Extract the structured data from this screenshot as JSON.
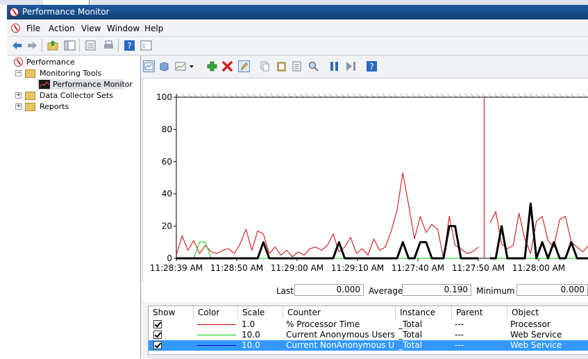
{
  "window": {
    "title": "Performance Monitor"
  },
  "menu": [
    "File",
    "Action",
    "View",
    "Window",
    "Help"
  ],
  "tree": {
    "root": "Performance",
    "monitoring_tools": "Monitoring Tools",
    "performance_monitor": "Performance Monitor",
    "data_collector_sets": "Data Collector Sets",
    "reports": "Reports"
  },
  "chart_data": {
    "type": "line",
    "ylim": [
      0,
      100
    ],
    "yticks": [
      "100",
      "80",
      "60",
      "40",
      "20",
      "0"
    ],
    "xticks": [
      "11:28:39 AM",
      "11:28:50 AM",
      "11:29:00 AM",
      "11:29:10 AM",
      "11:27:40 AM",
      "11:27:50 AM",
      "11:28:00 AM"
    ],
    "current_position_index": 52,
    "series": [
      {
        "color": "#cc0000",
        "values": [
          2,
          14,
          5,
          11,
          3,
          8,
          4,
          3,
          5,
          6,
          3,
          9,
          18,
          5,
          17,
          15,
          3,
          7,
          2,
          5,
          1,
          4,
          2,
          6,
          7,
          5,
          8,
          15,
          4,
          7,
          13,
          3,
          6,
          2,
          12,
          5,
          7,
          17,
          30,
          53,
          33,
          12,
          26,
          16,
          21,
          18,
          0,
          26,
          8,
          6,
          3,
          4,
          7,
          12,
          22,
          29,
          9,
          6,
          8,
          28,
          12,
          3,
          23,
          26,
          11,
          7,
          24,
          26,
          10,
          7,
          4,
          8
        ]
      },
      {
        "color": "#00cc00",
        "values": [
          0,
          0,
          0,
          0,
          10,
          10,
          0,
          0,
          0,
          0,
          0,
          0,
          0,
          0,
          0,
          0,
          0,
          0,
          0,
          0,
          0,
          0,
          0,
          0,
          0,
          0,
          0,
          0,
          0,
          0,
          0,
          0,
          0,
          0,
          0,
          0,
          0,
          0,
          0,
          0,
          0,
          0,
          0,
          0,
          0,
          0,
          0,
          0,
          0,
          0,
          0,
          0,
          0,
          0,
          0,
          0,
          0,
          0,
          0,
          0,
          0,
          0,
          0,
          0,
          0,
          0,
          0,
          0,
          0,
          0,
          0,
          0
        ]
      },
      {
        "color": "#000000",
        "values": [
          0,
          0,
          0,
          0,
          0,
          0,
          0,
          0,
          0,
          0,
          0,
          0,
          0,
          0,
          0,
          10,
          0,
          0,
          0,
          0,
          0,
          0,
          0,
          0,
          0,
          0,
          0,
          0,
          10,
          0,
          0,
          0,
          0,
          0,
          0,
          0,
          0,
          0,
          0,
          10,
          0,
          0,
          10,
          10,
          0,
          0,
          0,
          20,
          20,
          0,
          0,
          0,
          0,
          0,
          0,
          0,
          20,
          0,
          0,
          0,
          0,
          34,
          0,
          10,
          0,
          10,
          0,
          0,
          10,
          0,
          0,
          0
        ]
      }
    ]
  },
  "stats": {
    "last_label": "Last",
    "last_value": "0.000",
    "average_label": "Average",
    "average_value": "0.190",
    "minimum_label": "Minimum",
    "minimum_value": "0.000"
  },
  "table": {
    "columns": [
      "Show",
      "Color",
      "Scale",
      "Counter",
      "Instance",
      "Parent",
      "Object"
    ],
    "rows": [
      {
        "color": "#cc0000",
        "scale": "1.0",
        "counter": "% Processor Time",
        "instance": "_Total",
        "parent": "---",
        "object": "Processor",
        "selected": false
      },
      {
        "color": "#00cc00",
        "scale": "10.0",
        "counter": "Current Anonymous Users",
        "instance": "_Total",
        "parent": "---",
        "object": "Web Service",
        "selected": false
      },
      {
        "color": "#0000cc",
        "scale": "10.0",
        "counter": "Current NonAnonymous U...",
        "instance": "_Total",
        "parent": "---",
        "object": "Web Service",
        "selected": true
      }
    ]
  }
}
